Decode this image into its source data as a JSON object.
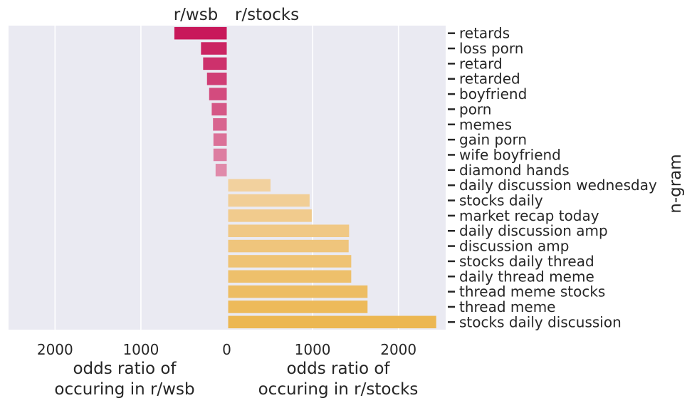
{
  "chart_data": {
    "type": "bar",
    "orientation": "horizontal",
    "grid": true,
    "xlim": [
      -2550,
      2550
    ],
    "x_ticks": [
      2000,
      1000,
      0,
      1000,
      2000
    ],
    "x_tick_values": [
      -2000,
      -1000,
      0,
      1000,
      2000
    ],
    "ylabel": "n-gram",
    "left_xlabel": [
      "odds ratio of",
      "occuring in r/wsb"
    ],
    "right_xlabel": [
      "odds ratio of",
      "occuring in r/stocks"
    ],
    "left_title": "r/wsb",
    "right_title": "r/stocks",
    "colors": {
      "background": "#eaeaf2",
      "grid": "#ffffff",
      "wsb_start": "#c8185a",
      "wsb_end": "#e08aaa",
      "stocks_start": "#f2d19e",
      "stocks_end": "#ecb752"
    },
    "categories": [
      "retards",
      "loss porn",
      "retard",
      "retarded",
      "boyfriend",
      "porn",
      "memes",
      "gain porn",
      "wife boyfriend",
      "diamond hands",
      "daily discussion wednesday",
      "stocks daily",
      "market recap today",
      "daily discussion amp",
      "discussion amp",
      "stocks daily thread",
      "daily thread meme",
      "thread meme stocks",
      "thread meme",
      "stocks daily discussion"
    ],
    "series": [
      {
        "name": "r/wsb",
        "values": [
          610,
          300,
          275,
          230,
          205,
          175,
          160,
          155,
          155,
          130,
          0,
          0,
          0,
          0,
          0,
          0,
          0,
          0,
          0,
          0
        ]
      },
      {
        "name": "r/stocks",
        "values": [
          0,
          0,
          0,
          0,
          0,
          0,
          0,
          0,
          0,
          0,
          510,
          965,
          990,
          1425,
          1420,
          1450,
          1450,
          1640,
          1640,
          2440
        ]
      }
    ]
  }
}
